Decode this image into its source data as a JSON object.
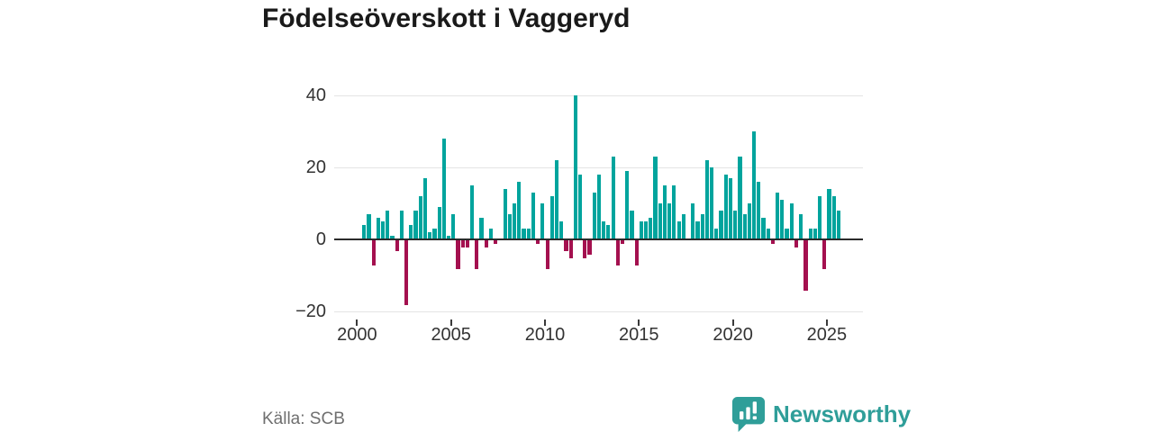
{
  "page": {
    "title": "Födelseöverskott i Vaggeryd"
  },
  "footer": {
    "source": "Källa: SCB",
    "logo_text": "Newsworthy"
  },
  "colors": {
    "positive_bar": "#00a49d",
    "negative_bar": "#a4104f",
    "grid": "#e4e4e4",
    "zero_axis": "#2b2b2b",
    "tick_label": "#333333",
    "title_text": "#1a1a1a",
    "source_text": "#6f6f6f",
    "logo_teal": "#2f9e99"
  },
  "chart_data": {
    "type": "bar",
    "title": "Födelseöverskott i Vaggeryd",
    "xlabel": "",
    "ylabel": "",
    "frequency": "quarterly",
    "period_start": "2000 Q1",
    "period_end": "2025 Q3",
    "ylim": [
      -21.5,
      43
    ],
    "grid": "horizontal",
    "legend": "none",
    "yticks": [
      {
        "value": 40,
        "label": "40"
      },
      {
        "value": 20,
        "label": "20"
      },
      {
        "value": 0,
        "label": "0"
      },
      {
        "value": -20,
        "label": "−20"
      }
    ],
    "xticks": [
      {
        "value": 2000,
        "label": "2000"
      },
      {
        "value": 2005,
        "label": "2005"
      },
      {
        "value": 2010,
        "label": "2010"
      },
      {
        "value": 2015,
        "label": "2015"
      },
      {
        "value": 2020,
        "label": "2020"
      },
      {
        "value": 2025,
        "label": "2025"
      }
    ],
    "values": [
      0,
      4,
      7,
      -7,
      6,
      5,
      8,
      1,
      -3,
      8,
      -18,
      4,
      8,
      12,
      17,
      2,
      3,
      9,
      28,
      1,
      7,
      -8,
      -2,
      -2,
      15,
      -8,
      6,
      -2,
      3,
      -1,
      0,
      14,
      7,
      10,
      16,
      3,
      3,
      13,
      -1,
      10,
      -8,
      12,
      22,
      5,
      -3,
      -5,
      40,
      18,
      -5,
      -4,
      13,
      18,
      5,
      4,
      23,
      -7,
      -1,
      19,
      8,
      -7,
      5,
      5,
      6,
      23,
      10,
      15,
      10,
      15,
      5,
      7,
      0,
      10,
      5,
      7,
      22,
      20,
      3,
      8,
      18,
      17,
      8,
      23,
      7,
      10,
      30,
      16,
      6,
      3,
      -1,
      13,
      11,
      3,
      10,
      -2,
      7,
      -14,
      3,
      3,
      12,
      -8,
      14,
      12,
      8
    ]
  }
}
